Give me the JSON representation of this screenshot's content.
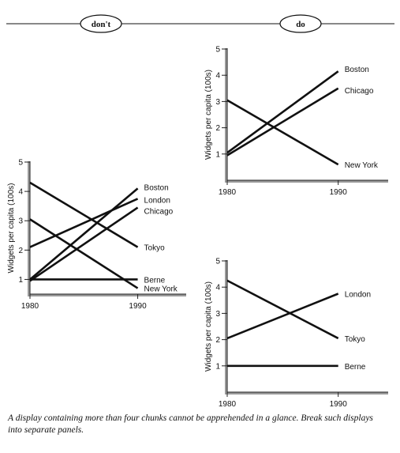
{
  "header": {
    "dont_label": "don't",
    "do_label": "do"
  },
  "caption": "A display containing more than four chunks cannot be apprehended in a glance. Break such displays into separate panels.",
  "chart_data": [
    {
      "type": "line",
      "panel": "don't",
      "ylabel": "Widgets per capita (100s)",
      "xlabel": "",
      "x": [
        1980,
        1990
      ],
      "xticks": [
        1980,
        1990
      ],
      "yticks": [
        1,
        2,
        3,
        4,
        5
      ],
      "xlim": [
        1980,
        1994.5
      ],
      "ylim": [
        0.5,
        5
      ],
      "series": [
        {
          "name": "Boston",
          "values": [
            1.0,
            4.1
          ]
        },
        {
          "name": "London",
          "values": [
            2.1,
            3.75
          ]
        },
        {
          "name": "Chicago",
          "values": [
            0.95,
            3.45
          ]
        },
        {
          "name": "Tokyo",
          "values": [
            4.3,
            2.1
          ]
        },
        {
          "name": "Berne",
          "values": [
            1.0,
            1.0
          ]
        },
        {
          "name": "New York",
          "values": [
            3.05,
            0.7
          ]
        }
      ]
    },
    {
      "type": "line",
      "panel": "do",
      "ylabel": "Widgets per capita (100s)",
      "xlabel": "",
      "x": [
        1980,
        1990
      ],
      "xticks": [
        1980,
        1990
      ],
      "yticks": [
        1,
        2,
        3,
        4,
        5
      ],
      "xlim": [
        1980,
        1994.5
      ],
      "ylim": [
        0,
        5
      ],
      "series": [
        {
          "name": "Boston",
          "values": [
            1.05,
            4.15
          ]
        },
        {
          "name": "Chicago",
          "values": [
            0.95,
            3.5
          ]
        },
        {
          "name": "New York",
          "values": [
            3.05,
            0.6
          ]
        }
      ]
    },
    {
      "type": "line",
      "panel": "do",
      "ylabel": "Widgets per capita (100s)",
      "xlabel": "",
      "x": [
        1980,
        1990
      ],
      "xticks": [
        1980,
        1990
      ],
      "yticks": [
        1,
        2,
        3,
        4,
        5
      ],
      "xlim": [
        1980,
        1994.5
      ],
      "ylim": [
        0,
        5
      ],
      "series": [
        {
          "name": "London",
          "values": [
            2.05,
            3.75
          ]
        },
        {
          "name": "Tokyo",
          "values": [
            4.25,
            2.05
          ]
        },
        {
          "name": "Berne",
          "values": [
            1.0,
            1.0
          ]
        }
      ]
    }
  ]
}
